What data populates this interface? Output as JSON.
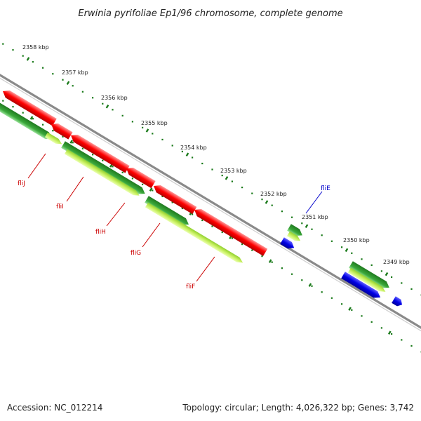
{
  "title": "Erwinia pyrifoliae Ep1/96 chromosome, complete genome",
  "footer": {
    "accession": "Accession: NC_012214",
    "topology": "Topology: circular; Length: 4,026,322 bp; Genes: 3,742"
  },
  "colors": {
    "backbone": "#808080",
    "reverse_cds": "#ff0000",
    "forward_cds": "#2a8a2a",
    "forward_cds_light": "#c8f060",
    "blue_feature": "#0000e6",
    "tick": "#1a7a1a",
    "label_red": "#cc0000",
    "label_blue": "#0000cc"
  },
  "ticks": [
    "2358 kbp",
    "2357 kbp",
    "2356 kbp",
    "2355 kbp",
    "2354 kbp",
    "2353 kbp",
    "2352 kbp",
    "2351 kbp",
    "2350 kbp",
    "2349 kbp"
  ],
  "genes": [
    {
      "name": "fliJ",
      "color": "red"
    },
    {
      "name": "fliI",
      "color": "red"
    },
    {
      "name": "fliH",
      "color": "red"
    },
    {
      "name": "fliG",
      "color": "red"
    },
    {
      "name": "fliF",
      "color": "red"
    },
    {
      "name": "fliE",
      "color": "blue"
    }
  ]
}
